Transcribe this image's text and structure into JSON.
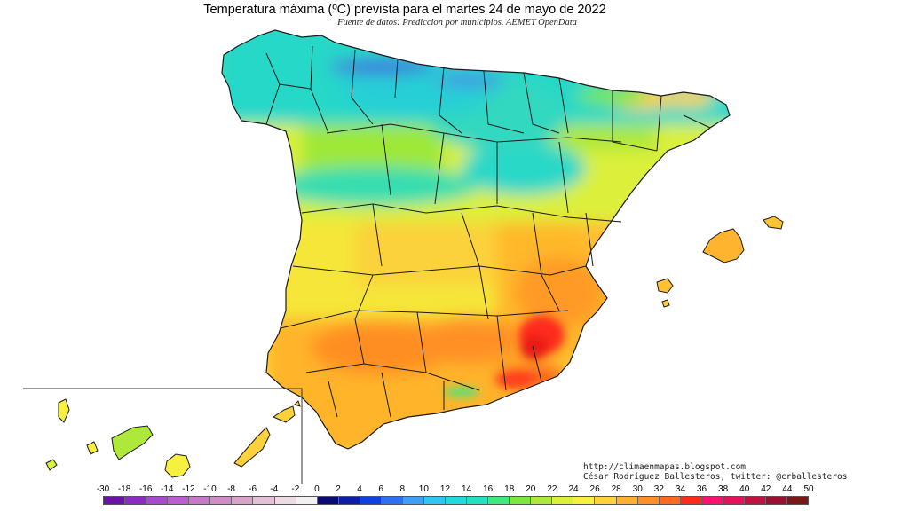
{
  "header": {
    "title": "Temperatura máxima (ºC) prevista para el martes 24 de mayo de 2022",
    "subtitle": "Fuente de datos: Prediccion por municipios. AEMET OpenData"
  },
  "credits": {
    "url": "http://climaenmapas.blogspot.com",
    "author": "César Rodríguez Ballesteros, twitter: @crballesteros"
  },
  "legend": {
    "unit": "ºC",
    "ticks": [
      "-30",
      "-18",
      "-16",
      "-14",
      "-12",
      "-10",
      "-8",
      "-6",
      "-4",
      "-2",
      "0",
      "2",
      "4",
      "6",
      "8",
      "10",
      "12",
      "14",
      "16",
      "18",
      "20",
      "22",
      "24",
      "26",
      "28",
      "30",
      "32",
      "34",
      "36",
      "38",
      "40",
      "42",
      "44",
      "50"
    ],
    "colors": [
      "#6a12a8",
      "#8a2bc4",
      "#a64ad0",
      "#b95fcf",
      "#c878c8",
      "#d08cc6",
      "#d8a2c9",
      "#e2c0d6",
      "#eddbe4",
      "#f3f0f2",
      "#0a0a70",
      "#0a1ea6",
      "#1040e0",
      "#2f6ff2",
      "#3f9ff5",
      "#2fc6f0",
      "#22dadc",
      "#25e0be",
      "#40e880",
      "#7ae840",
      "#aee83a",
      "#dcf03a",
      "#f8f040",
      "#ffd23c",
      "#ffb030",
      "#ff9028",
      "#ff6a20",
      "#ff2a1a",
      "#ff1070",
      "#e8105a",
      "#c21040",
      "#9a1030",
      "#7a1818"
    ]
  },
  "regions": [
    {
      "name": "Cantabrian coast",
      "band": "12-16"
    },
    {
      "name": "Iberian interior",
      "band": "22-28"
    },
    {
      "name": "Murcia",
      "band": "32-34"
    },
    {
      "name": "Balearic Islands",
      "band": "26-28"
    },
    {
      "name": "Canary Islands",
      "band": "20-24"
    }
  ]
}
